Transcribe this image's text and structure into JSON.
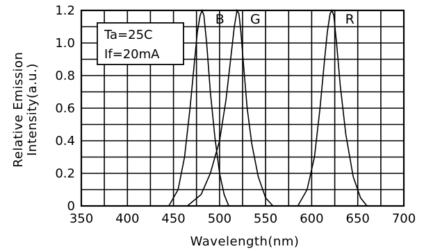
{
  "chart_data": {
    "type": "line",
    "title": "",
    "xlabel": "Wavelength(nm)",
    "ylabel_line1": "Relative Emission",
    "ylabel_line2": "Intensity(a.u.)",
    "xlim": [
      350,
      700
    ],
    "ylim": [
      0,
      1.2
    ],
    "x_ticks": [
      "350",
      "400",
      "450",
      "500",
      "550",
      "600",
      "650",
      "700"
    ],
    "y_ticks": [
      "0",
      "0.2",
      "0.4",
      "0.6",
      "0.8",
      "1.0",
      "1.2"
    ],
    "x_tick_values": [
      350,
      400,
      450,
      500,
      550,
      600,
      650,
      700
    ],
    "y_tick_values": [
      0,
      0.2,
      0.4,
      0.6,
      0.8,
      1.0,
      1.2
    ],
    "x_grid_step": 25,
    "y_grid_step": 0.1,
    "grid": true,
    "conditions": [
      "Ta=25C",
      "If=20mA"
    ],
    "series": [
      {
        "name": "B",
        "x": [
          445,
          455,
          462,
          468,
          473,
          476,
          479,
          481,
          483,
          486,
          490,
          495,
          500,
          505,
          510
        ],
        "y": [
          0,
          0.1,
          0.3,
          0.6,
          0.9,
          1.07,
          1.17,
          1.2,
          1.17,
          1.0,
          0.7,
          0.42,
          0.2,
          0.07,
          0
        ]
      },
      {
        "name": "G",
        "x": [
          465,
          480,
          490,
          500,
          507,
          512,
          516,
          519,
          521,
          523,
          526,
          530,
          535,
          542,
          550,
          558
        ],
        "y": [
          0,
          0.07,
          0.2,
          0.4,
          0.65,
          0.9,
          1.1,
          1.2,
          1.18,
          1.08,
          0.87,
          0.6,
          0.38,
          0.18,
          0.05,
          0
        ]
      },
      {
        "name": "R",
        "x": [
          585,
          595,
          603,
          609,
          614,
          617,
          620,
          622,
          624,
          627,
          631,
          637,
          645,
          653,
          660
        ],
        "y": [
          0,
          0.1,
          0.3,
          0.6,
          0.9,
          1.07,
          1.18,
          1.2,
          1.17,
          1.0,
          0.74,
          0.44,
          0.18,
          0.05,
          0
        ]
      }
    ]
  }
}
